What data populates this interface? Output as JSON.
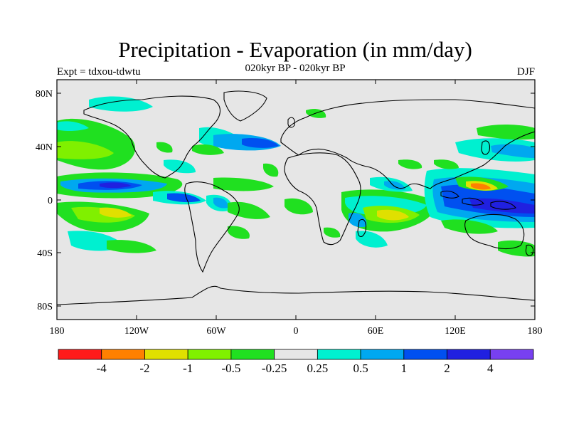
{
  "title": "Precipitation - Evaporation (in mm/day)",
  "subtitle": "020kyr BP - 020kyr BP",
  "experiment": "Expt = tdxou-tdwtu",
  "season": "DJF",
  "lat_ticks": [
    "80N",
    "40N",
    "0",
    "40S",
    "80S"
  ],
  "lon_ticks": [
    "180",
    "120W",
    "60W",
    "0",
    "60E",
    "120E",
    "180"
  ],
  "colorbar": {
    "colors": [
      "#ff1a1a",
      "#ff8000",
      "#e0e000",
      "#80f000",
      "#20e020",
      "#e6e6e6",
      "#00f0d0",
      "#00a8f0",
      "#0050f0",
      "#2020e0",
      "#7840f0"
    ],
    "labels": [
      "-4",
      "-2",
      "-1",
      "-0.5",
      "-0.25",
      "0.25",
      "0.5",
      "1",
      "2",
      "4"
    ]
  },
  "colors": {
    "ocean_background": "#e6e6e6",
    "coastline": "#000000"
  }
}
